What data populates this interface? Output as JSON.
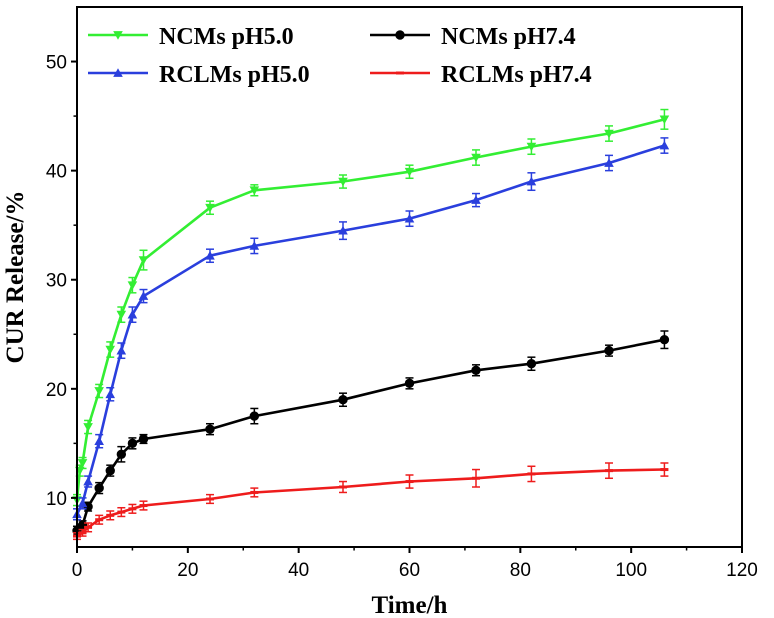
{
  "chart_data": {
    "type": "line",
    "title": "",
    "xlabel": "Time/h",
    "ylabel": "CUR Release/%",
    "xlim": [
      0,
      120
    ],
    "ylim": [
      5.5,
      55
    ],
    "xticks": [
      0,
      20,
      40,
      60,
      80,
      100,
      120
    ],
    "yticks": [
      10,
      20,
      30,
      40,
      50
    ],
    "grid": false,
    "legend_position": "top",
    "series": [
      {
        "name": "NCMs pH5.0",
        "color": "#33ee33",
        "marker": "triangle-down",
        "x": [
          0,
          0.5,
          1,
          2,
          4,
          6,
          8,
          10,
          12,
          24,
          32,
          48,
          60,
          72,
          82,
          96,
          106
        ],
        "y": [
          9.8,
          12.5,
          13.2,
          16.5,
          19.8,
          23.6,
          26.8,
          29.5,
          31.8,
          36.6,
          38.2,
          39.0,
          39.9,
          41.2,
          42.2,
          43.4,
          44.7
        ],
        "err": [
          0.5,
          0.5,
          0.5,
          0.6,
          0.6,
          0.7,
          0.7,
          0.7,
          0.9,
          0.6,
          0.5,
          0.6,
          0.6,
          0.7,
          0.7,
          0.7,
          0.9
        ]
      },
      {
        "name": "NCMs pH7.4",
        "color": "#000000",
        "marker": "circle",
        "x": [
          0,
          1,
          2,
          4,
          6,
          8,
          10,
          12,
          24,
          32,
          48,
          60,
          72,
          82,
          96,
          106
        ],
        "y": [
          7.0,
          7.5,
          9.2,
          10.9,
          12.5,
          14.0,
          15.0,
          15.4,
          16.3,
          17.5,
          19.0,
          20.5,
          21.7,
          22.3,
          23.5,
          24.5
        ],
        "err": [
          0.4,
          0.4,
          0.4,
          0.5,
          0.5,
          0.7,
          0.5,
          0.4,
          0.5,
          0.7,
          0.6,
          0.5,
          0.5,
          0.6,
          0.5,
          0.8
        ]
      },
      {
        "name": "RCLMs pH5.0",
        "color": "#2a3fdd",
        "marker": "triangle-up",
        "x": [
          0,
          1,
          2,
          4,
          6,
          8,
          10,
          12,
          24,
          32,
          48,
          60,
          72,
          82,
          96,
          106
        ],
        "y": [
          8.5,
          9.5,
          11.5,
          15.2,
          19.5,
          23.5,
          26.8,
          28.5,
          32.2,
          33.1,
          34.5,
          35.6,
          37.3,
          39.0,
          40.7,
          42.3
        ],
        "err": [
          0.5,
          0.5,
          0.5,
          0.6,
          0.6,
          0.7,
          0.7,
          0.6,
          0.6,
          0.7,
          0.8,
          0.7,
          0.6,
          0.8,
          0.7,
          0.7
        ]
      },
      {
        "name": "RCLMs pH7.4",
        "color": "#ee1c1c",
        "marker": "line",
        "x": [
          0,
          1,
          2,
          4,
          6,
          8,
          10,
          12,
          24,
          32,
          48,
          60,
          72,
          82,
          96,
          106
        ],
        "y": [
          6.5,
          6.8,
          7.3,
          8.0,
          8.4,
          8.7,
          9.0,
          9.3,
          9.9,
          10.5,
          11.0,
          11.5,
          11.8,
          12.2,
          12.5,
          12.6
        ],
        "err": [
          0.3,
          0.3,
          0.4,
          0.4,
          0.4,
          0.4,
          0.4,
          0.4,
          0.4,
          0.4,
          0.5,
          0.6,
          0.8,
          0.7,
          0.7,
          0.6
        ]
      }
    ]
  }
}
